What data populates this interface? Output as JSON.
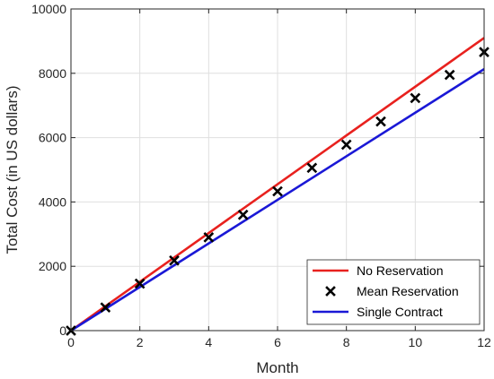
{
  "chart_data": {
    "type": "line",
    "title": "",
    "xlabel": "Month",
    "ylabel": "Total Cost (in US dollars)",
    "xlim": [
      0,
      12
    ],
    "ylim": [
      0,
      10000
    ],
    "xticks": [
      0,
      2,
      4,
      6,
      8,
      10,
      12
    ],
    "yticks": [
      0,
      2000,
      4000,
      6000,
      8000,
      10000
    ],
    "grid": true,
    "legend_position": "bottom-right",
    "series": [
      {
        "name": "No Reservation",
        "style": "line",
        "color": "#e8211e",
        "x": [
          0,
          12
        ],
        "y": [
          0,
          9100
        ]
      },
      {
        "name": "Mean Reservation",
        "style": "markers",
        "marker": "x",
        "color": "#000000",
        "x": [
          0,
          1,
          2,
          3,
          4,
          5,
          6,
          7,
          8,
          9,
          10,
          11,
          12
        ],
        "y": [
          0,
          720,
          1460,
          2180,
          2900,
          3600,
          4330,
          5060,
          5780,
          6500,
          7230,
          7950,
          8660
        ]
      },
      {
        "name": "Single Contract",
        "style": "line",
        "color": "#1a18d6",
        "x": [
          0,
          12
        ],
        "y": [
          0,
          8130
        ]
      }
    ]
  }
}
